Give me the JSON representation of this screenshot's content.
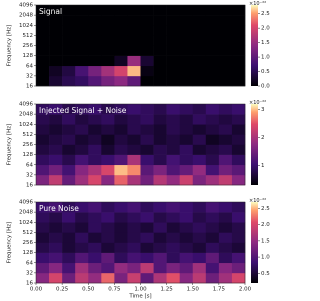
{
  "chart_data": [
    {
      "type": "heatmap",
      "title": "Signal",
      "ylabel": "Frequency [Hz]",
      "colormap": "magma",
      "colorbar_label": "×10⁻²²",
      "xlim": [
        0,
        2
      ],
      "ylim": [
        16,
        4096
      ],
      "yscale": "log",
      "x_edges": [
        0,
        0.125,
        0.25,
        0.375,
        0.5,
        0.625,
        0.75,
        0.875,
        1,
        1.125,
        1.25,
        1.375,
        1.5,
        1.625,
        1.75,
        1.875,
        2
      ],
      "y_edges": [
        16,
        32,
        64,
        128,
        256,
        512,
        1024,
        2048,
        4096
      ],
      "yticks": [
        16,
        32,
        64,
        128,
        256,
        512,
        1024,
        2048,
        4096
      ],
      "clim": [
        0,
        2.8
      ],
      "cticks": [
        {
          "value": 0,
          "label": "0.0"
        },
        0.5,
        {
          "value": 1,
          "label": "1.0"
        },
        1.5,
        {
          "value": 2,
          "label": "2.0"
        },
        2.5
      ],
      "values": [
        [
          0,
          0.3,
          0.5,
          0.6,
          0.9,
          1.2,
          1.4,
          1.0,
          0,
          0,
          0,
          0,
          0,
          0,
          0,
          0
        ],
        [
          0,
          0.2,
          0.4,
          0.8,
          1.2,
          1.6,
          2.0,
          2.6,
          0.1,
          0,
          0,
          0,
          0,
          0,
          0,
          0
        ],
        [
          0,
          0,
          0,
          0,
          0,
          0,
          0.2,
          1.5,
          0.3,
          0,
          0,
          0,
          0,
          0,
          0,
          0
        ],
        [
          0,
          0,
          0,
          0,
          0,
          0,
          0,
          0,
          0,
          0,
          0,
          0,
          0,
          0,
          0,
          0
        ],
        [
          0,
          0,
          0,
          0,
          0,
          0,
          0,
          0,
          0,
          0,
          0,
          0,
          0,
          0,
          0,
          0
        ],
        [
          0,
          0,
          0,
          0,
          0,
          0,
          0,
          0,
          0,
          0,
          0,
          0,
          0,
          0,
          0,
          0
        ],
        [
          0,
          0,
          0,
          0,
          0,
          0,
          0,
          0,
          0,
          0,
          0,
          0,
          0,
          0,
          0,
          0
        ],
        [
          0,
          0,
          0,
          0,
          0,
          0,
          0,
          0,
          0,
          0,
          0,
          0,
          0,
          0,
          0,
          0
        ]
      ]
    },
    {
      "type": "heatmap",
      "title": "Injected Signal + Noise",
      "ylabel": "Frequency [Hz]",
      "colormap": "magma",
      "colorbar_label": "×10⁻²²",
      "xlim": [
        0,
        2
      ],
      "ylim": [
        16,
        4096
      ],
      "yscale": "log",
      "x_edges": [
        0,
        0.125,
        0.25,
        0.375,
        0.5,
        0.625,
        0.75,
        0.875,
        1,
        1.125,
        1.25,
        1.375,
        1.5,
        1.625,
        1.75,
        1.875,
        2
      ],
      "y_edges": [
        16,
        32,
        64,
        128,
        256,
        512,
        1024,
        2048,
        4096
      ],
      "yticks": [
        16,
        32,
        64,
        128,
        256,
        512,
        1024,
        2048,
        4096
      ],
      "clim": [
        0.3,
        3.2
      ],
      "cticks": [
        1,
        2,
        3
      ],
      "values": [
        [
          1.6,
          2.2,
          1.4,
          1.9,
          2.4,
          1.7,
          2.6,
          2.0,
          1.5,
          2.1,
          1.8,
          2.3,
          1.6,
          1.9,
          2.2,
          1.7
        ],
        [
          1.2,
          1.5,
          1.1,
          1.7,
          2.0,
          2.4,
          3.0,
          2.8,
          1.3,
          1.6,
          1.2,
          1.4,
          1.8,
          1.1,
          1.5,
          1.3
        ],
        [
          0.9,
          1.0,
          0.8,
          1.1,
          0.9,
          1.0,
          1.2,
          2.0,
          1.0,
          0.8,
          1.1,
          0.9,
          1.0,
          0.8,
          1.2,
          0.9
        ],
        [
          0.7,
          0.8,
          0.6,
          0.7,
          0.9,
          0.6,
          0.8,
          0.7,
          0.6,
          0.8,
          0.7,
          0.9,
          0.6,
          0.7,
          0.8,
          0.6
        ],
        [
          0.6,
          0.7,
          0.8,
          0.6,
          0.7,
          0.5,
          0.7,
          0.6,
          0.8,
          0.6,
          0.7,
          0.6,
          0.8,
          0.5,
          0.6,
          0.7
        ],
        [
          0.7,
          0.6,
          0.7,
          0.8,
          0.6,
          0.7,
          0.6,
          0.8,
          0.7,
          0.6,
          0.8,
          0.7,
          0.6,
          0.7,
          0.8,
          0.6
        ],
        [
          0.8,
          0.7,
          0.9,
          0.7,
          0.8,
          0.9,
          0.7,
          0.8,
          0.9,
          0.7,
          0.8,
          0.7,
          0.9,
          0.8,
          0.7,
          0.8
        ],
        [
          0.9,
          1.0,
          0.8,
          0.9,
          1.0,
          0.8,
          0.9,
          1.0,
          0.9,
          0.8,
          1.0,
          0.9,
          0.8,
          1.0,
          0.9,
          1.0
        ]
      ]
    },
    {
      "type": "heatmap",
      "title": "Pure Noise",
      "ylabel": "Frequency [Hz]",
      "xlabel": "Time [s]",
      "colormap": "magma",
      "colorbar_label": "×10⁻²²",
      "xlim": [
        0,
        2
      ],
      "ylim": [
        16,
        4096
      ],
      "yscale": "log",
      "x_edges": [
        0,
        0.125,
        0.25,
        0.375,
        0.5,
        0.625,
        0.75,
        0.875,
        1,
        1.125,
        1.25,
        1.375,
        1.5,
        1.625,
        1.75,
        1.875,
        2
      ],
      "y_edges": [
        16,
        32,
        64,
        128,
        256,
        512,
        1024,
        2048,
        4096
      ],
      "xticks": [
        {
          "value": 0,
          "label": "0.00"
        },
        0.25,
        {
          "value": 0.5,
          "label": "0.50"
        },
        0.75,
        {
          "value": 1,
          "label": "1.00"
        },
        1.25,
        {
          "value": 1.5,
          "label": "1.50"
        },
        1.75,
        {
          "value": 2,
          "label": "2.00"
        }
      ],
      "yticks": [
        16,
        32,
        64,
        128,
        256,
        512,
        1024,
        2048,
        4096
      ],
      "clim": [
        0.2,
        2.7
      ],
      "cticks": [
        0.5,
        {
          "value": 1,
          "label": "1.0"
        },
        1.5,
        {
          "value": 2,
          "label": "2.0"
        },
        2.5
      ],
      "values": [
        [
          1.4,
          2.0,
          1.2,
          1.8,
          1.5,
          2.2,
          1.3,
          1.9,
          1.1,
          1.7,
          2.1,
          1.4,
          1.8,
          1.2,
          1.6,
          2.0
        ],
        [
          1.1,
          1.4,
          0.9,
          1.6,
          1.2,
          1.0,
          1.5,
          1.3,
          1.8,
          1.0,
          1.3,
          1.1,
          1.6,
          0.9,
          1.4,
          1.2
        ],
        [
          0.8,
          0.9,
          0.7,
          1.0,
          0.8,
          1.1,
          0.7,
          0.9,
          0.8,
          1.0,
          0.7,
          0.9,
          0.8,
          1.1,
          0.7,
          0.9
        ],
        [
          0.6,
          0.7,
          0.5,
          0.6,
          0.7,
          0.5,
          0.6,
          0.7,
          0.5,
          0.6,
          0.7,
          0.6,
          0.5,
          0.7,
          0.6,
          0.5
        ],
        [
          0.5,
          0.6,
          0.5,
          0.7,
          0.5,
          0.6,
          0.5,
          0.6,
          0.7,
          0.5,
          0.6,
          0.5,
          0.6,
          0.5,
          0.7,
          0.6
        ],
        [
          0.6,
          0.5,
          0.6,
          0.5,
          0.7,
          0.6,
          0.5,
          0.6,
          0.5,
          0.7,
          0.5,
          0.6,
          0.7,
          0.6,
          0.5,
          0.6
        ],
        [
          0.7,
          0.6,
          0.8,
          0.6,
          0.7,
          0.8,
          0.6,
          0.7,
          0.8,
          0.6,
          0.7,
          0.8,
          0.6,
          0.7,
          0.6,
          0.8
        ],
        [
          0.8,
          0.9,
          0.7,
          0.8,
          0.9,
          0.7,
          0.8,
          0.9,
          0.7,
          0.8,
          0.9,
          0.8,
          0.7,
          0.9,
          0.8,
          0.7
        ]
      ]
    }
  ]
}
